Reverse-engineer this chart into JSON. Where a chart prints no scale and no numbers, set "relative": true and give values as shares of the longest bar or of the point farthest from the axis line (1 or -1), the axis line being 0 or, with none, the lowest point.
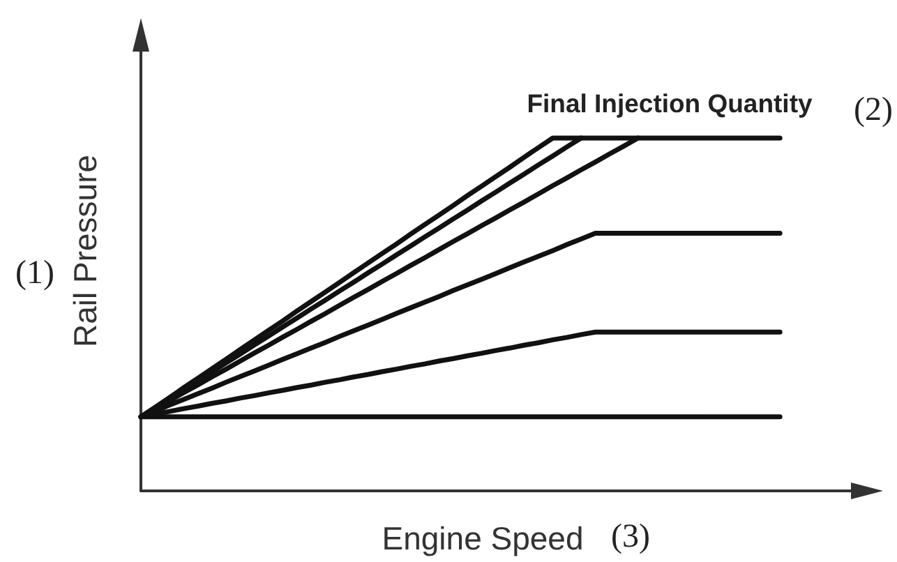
{
  "chart_data": {
    "type": "line",
    "xlabel": "Engine Speed",
    "ylabel": "Rail Pressure",
    "annotations": [
      "Final Injection Quantity",
      "(2)",
      "(1)",
      "(3)"
    ],
    "categories": [
      null,
      null,
      null,
      null,
      null,
      null,
      null,
      null,
      null,
      null,
      null,
      null,
      null,
      null,
      null,
      null,
      null,
      null,
      null,
      null,
      null,
      null,
      null,
      null,
      null,
      null,
      null,
      null,
      null,
      null,
      null,
      null,
      null,
      null,
      null,
      null,
      null,
      null,
      null,
      null,
      null,
      null,
      null,
      null,
      null,
      null,
      null,
      null,
      null,
      null,
      null
    ],
    "relative": true,
    "marker": "none",
    "line_style": "solid",
    "grid": false,
    "series": [
      {
        "color": "#111111",
        "values": [
          0.21,
          0.21,
          0.21,
          0.21,
          0.21,
          0.21,
          0.21,
          0.21,
          0.21,
          0.21,
          0.21,
          0.21,
          0.21,
          0.21,
          0.21,
          0.21,
          0.21,
          0.21,
          0.21,
          0.21,
          0.21,
          0.21,
          0.21,
          0.21,
          0.21,
          0.21,
          0.21,
          0.21,
          0.21,
          0.21,
          0.21,
          0.21,
          0.21,
          0.21,
          0.21,
          0.21,
          0.21,
          0.21,
          0.21,
          0.21,
          0.21,
          0.21,
          0.21,
          0.21,
          0.21,
          0.21,
          null,
          null,
          null,
          null,
          null
        ]
      },
      {
        "color": "#111111",
        "values": [
          0.21,
          0.218,
          0.225,
          0.233,
          0.24,
          0.248,
          0.255,
          0.263,
          0.27,
          0.278,
          0.285,
          0.293,
          0.3,
          0.308,
          0.315,
          0.323,
          0.33,
          0.338,
          0.345,
          0.353,
          0.36,
          0.368,
          0.375,
          0.383,
          0.39,
          0.398,
          0.405,
          0.413,
          0.42,
          0.428,
          0.435,
          0.443,
          0.45,
          0.45,
          0.45,
          0.45,
          0.45,
          0.45,
          0.45,
          0.45,
          0.45,
          0.45,
          0.45,
          0.45,
          0.45,
          0.45,
          null,
          null,
          null,
          null,
          null
        ]
      },
      {
        "color": "#111111",
        "values": [
          0.21,
          0.226,
          0.243,
          0.259,
          0.275,
          0.291,
          0.308,
          0.324,
          0.34,
          0.356,
          0.373,
          0.389,
          0.405,
          0.421,
          0.438,
          0.454,
          0.47,
          0.486,
          0.503,
          0.519,
          0.535,
          0.551,
          0.568,
          0.584,
          0.6,
          0.616,
          0.633,
          0.649,
          0.665,
          0.681,
          0.698,
          0.714,
          0.73,
          0.73,
          0.73,
          0.73,
          0.73,
          0.73,
          0.73,
          0.73,
          0.73,
          0.73,
          0.73,
          0.73,
          0.73,
          0.73,
          null,
          null,
          null,
          null,
          null
        ]
      },
      {
        "color": "#111111",
        "values": [
          0.21,
          0.237,
          0.264,
          0.292,
          0.319,
          0.346,
          0.373,
          0.401,
          0.428,
          0.455,
          0.482,
          0.51,
          0.537,
          0.564,
          0.591,
          0.619,
          0.646,
          0.673,
          0.7,
          0.728,
          0.755,
          0.782,
          0.809,
          0.837,
          0.864,
          0.891,
          0.918,
          0.946,
          0.973,
          1,
          1,
          1,
          1,
          1,
          1,
          1,
          1,
          1,
          1,
          1,
          1,
          1,
          1,
          1,
          1,
          1,
          null,
          null,
          null,
          null,
          null
        ]
      },
      {
        "color": "#111111",
        "values": [
          0.21,
          0.235,
          0.261,
          0.286,
          0.312,
          0.337,
          0.363,
          0.388,
          0.414,
          0.439,
          0.465,
          0.49,
          0.516,
          0.541,
          0.567,
          0.592,
          0.618,
          0.643,
          0.669,
          0.694,
          0.72,
          0.745,
          0.771,
          0.796,
          0.822,
          0.847,
          0.873,
          0.898,
          0.924,
          0.949,
          0.975,
          1,
          null,
          null,
          null,
          null,
          null,
          null,
          null,
          null,
          null,
          null,
          null,
          null,
          null,
          null,
          null,
          null,
          null,
          null,
          null
        ]
      },
      {
        "color": "#111111",
        "values": [
          0.21,
          0.233,
          0.255,
          0.278,
          0.3,
          0.323,
          0.345,
          0.368,
          0.391,
          0.413,
          0.436,
          0.458,
          0.481,
          0.503,
          0.526,
          0.549,
          0.571,
          0.594,
          0.616,
          0.639,
          0.661,
          0.684,
          0.707,
          0.729,
          0.752,
          0.774,
          0.797,
          0.819,
          0.842,
          0.865,
          0.887,
          0.91,
          0.932,
          0.955,
          0.977,
          1,
          null,
          null,
          null,
          null,
          null,
          null,
          null,
          null,
          null,
          null,
          null,
          null,
          null,
          null,
          null
        ]
      }
    ]
  }
}
